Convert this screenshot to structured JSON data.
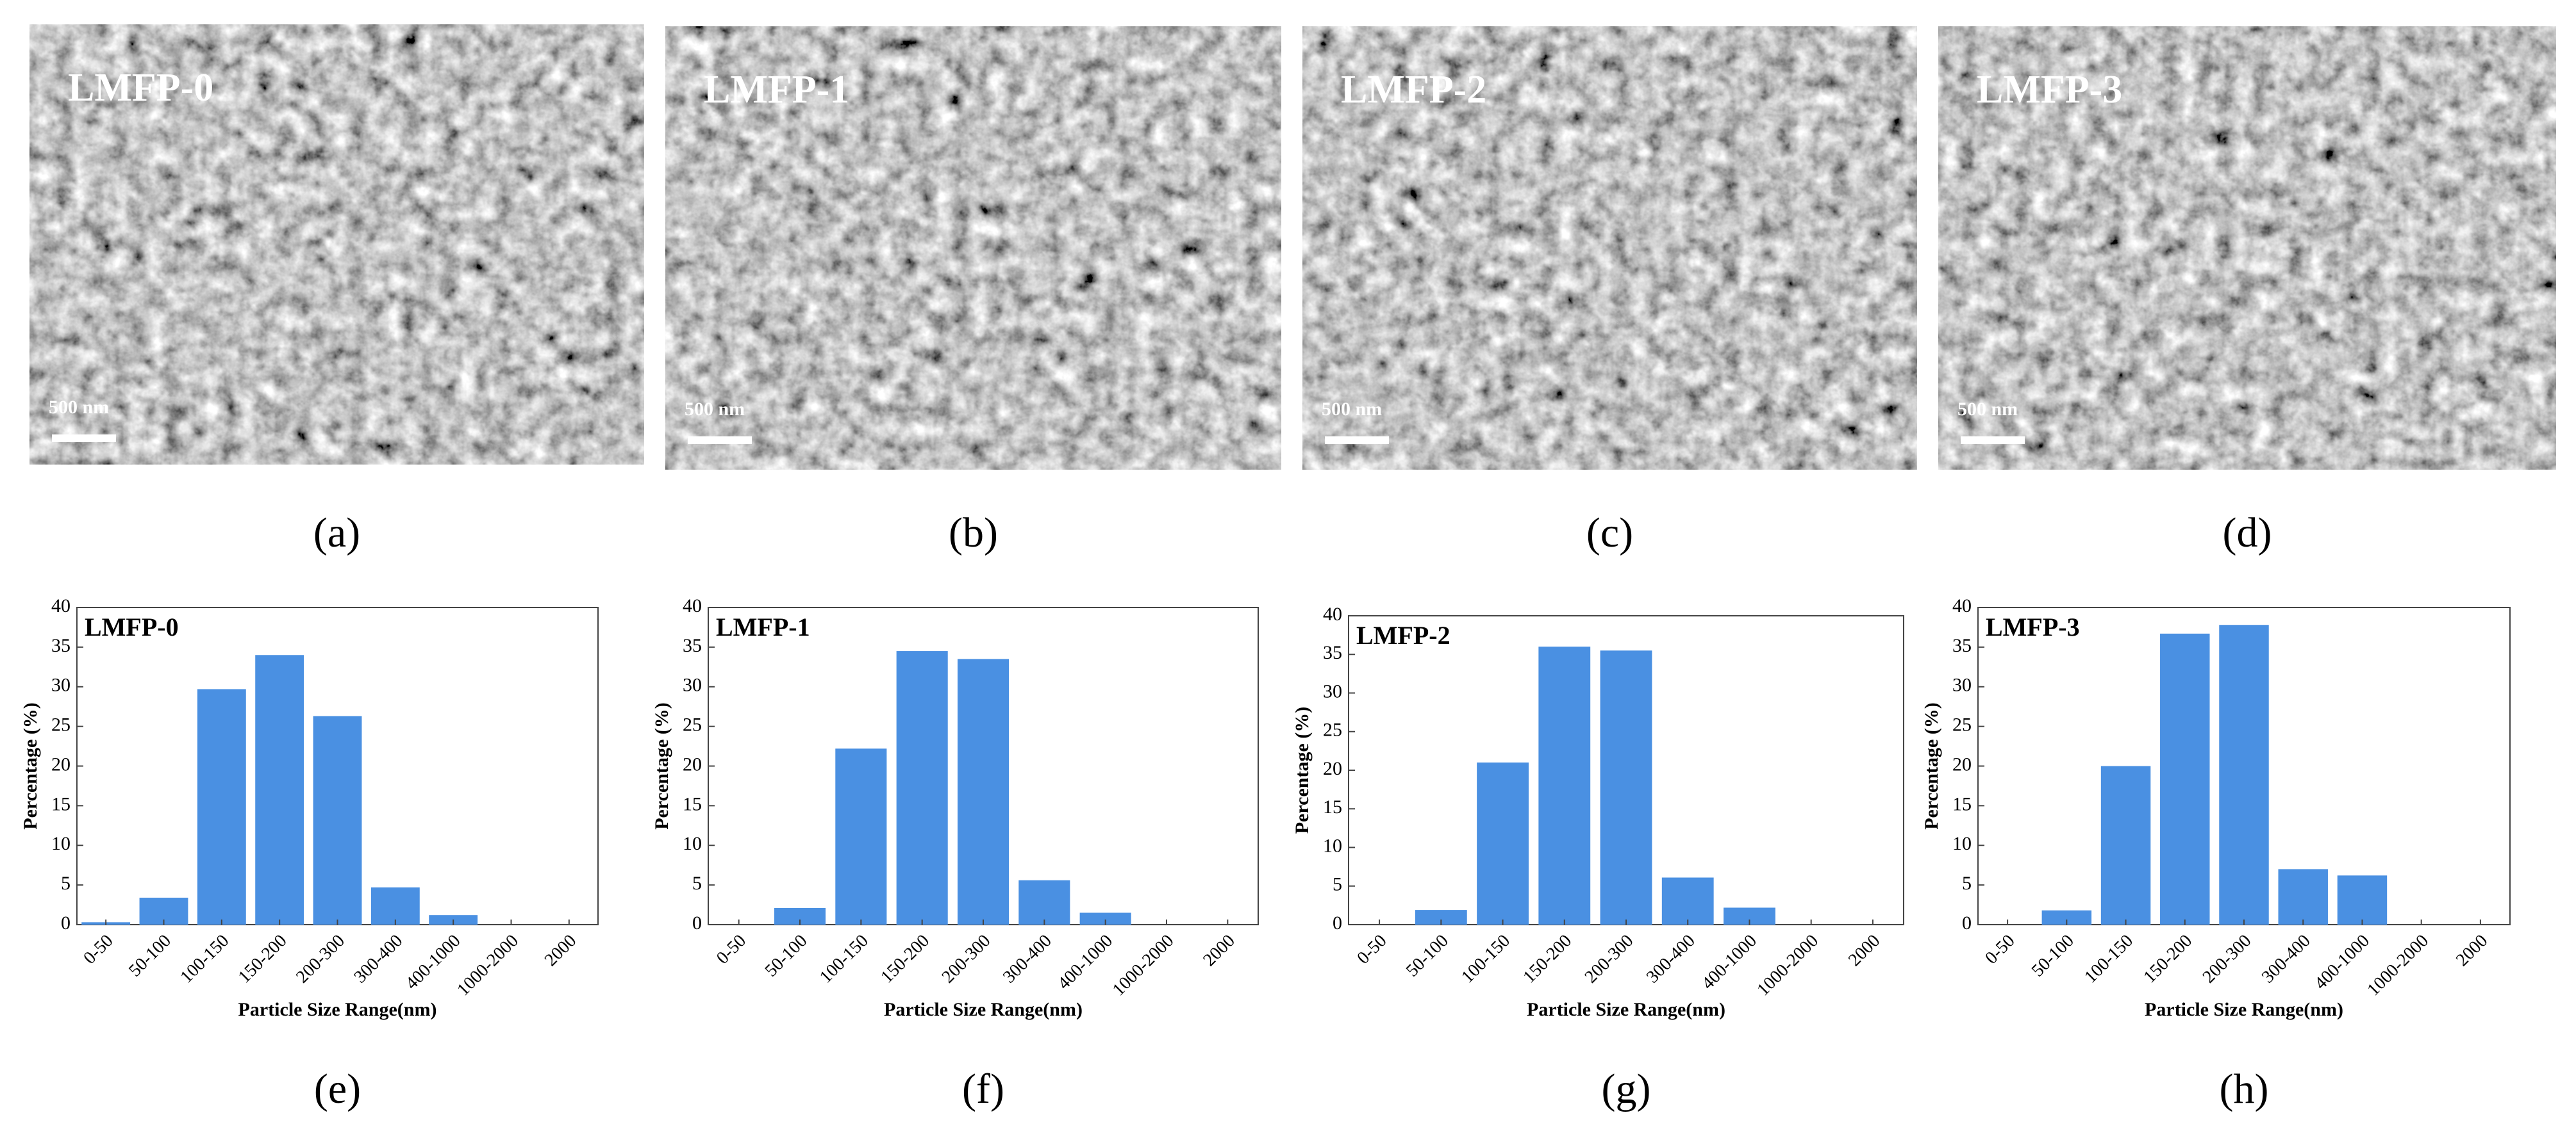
{
  "images": [
    {
      "label": "LMFP-0",
      "scale_bar": "500 nm",
      "caption": "(a)"
    },
    {
      "label": "LMFP-1",
      "scale_bar": "500 nm",
      "caption": "(b)"
    },
    {
      "label": "LMFP-2",
      "scale_bar": "500 nm",
      "caption": "(c)"
    },
    {
      "label": "LMFP-3",
      "scale_bar": "500 nm",
      "caption": "(d)"
    }
  ],
  "chart_data": [
    {
      "type": "bar",
      "annotation": "LMFP-0",
      "caption": "(e)",
      "x_label": "Particle Size Range(nm)",
      "y_label": "Percentage (%)",
      "color": "#4a90e2",
      "categories": [
        "0-50",
        "50-100",
        "100-150",
        "150-200",
        "200-300",
        "300-400",
        "400-1000",
        "1000-2000",
        "2000"
      ],
      "values": [
        0.3,
        3.4,
        29.7,
        34,
        26.3,
        4.7,
        1.2,
        0,
        0
      ],
      "ylim": [
        0,
        40
      ],
      "yticks": [
        0,
        5,
        10,
        15,
        20,
        25,
        30,
        35,
        40
      ]
    },
    {
      "type": "bar",
      "annotation": "LMFP-1",
      "caption": "(f)",
      "x_label": "Particle Size Range(nm)",
      "y_label": "Percentage (%)",
      "color": "#4a90e2",
      "categories": [
        "0-50",
        "50-100",
        "100-150",
        "150-200",
        "200-300",
        "300-400",
        "400-1000",
        "1000-2000",
        "2000"
      ],
      "values": [
        0,
        2.1,
        22.2,
        34.5,
        33.5,
        5.6,
        1.5,
        0,
        0
      ],
      "ylim": [
        0,
        40
      ],
      "yticks": [
        0,
        5,
        10,
        15,
        20,
        25,
        30,
        35,
        40
      ]
    },
    {
      "type": "bar",
      "annotation": "LMFP-2",
      "caption": "(g)",
      "x_label": "Particle Size Range(nm)",
      "y_label": "Percentage (%)",
      "color": "#4a90e2",
      "categories": [
        "0-50",
        "50-100",
        "100-150",
        "150-200",
        "200-300",
        "300-400",
        "400-1000",
        "1000-2000",
        "2000"
      ],
      "values": [
        0,
        1.9,
        21,
        36,
        35.5,
        6.1,
        2.2,
        0,
        0
      ],
      "ylim": [
        0,
        40
      ],
      "yticks": [
        0,
        5,
        10,
        15,
        20,
        25,
        30,
        35,
        40
      ]
    },
    {
      "type": "bar",
      "annotation": "LMFP-3",
      "caption": "(h)",
      "x_label": "Particle Size Range(nm)",
      "y_label": "Percentage (%)",
      "color": "#4a90e2",
      "categories": [
        "0-50",
        "50-100",
        "100-150",
        "150-200",
        "200-300",
        "300-400",
        "400-1000",
        "1000-2000",
        "2000"
      ],
      "values": [
        0,
        1.8,
        20,
        36.7,
        37.8,
        7,
        6.2,
        0,
        0
      ],
      "ylim": [
        0,
        40
      ],
      "yticks": [
        0,
        5,
        10,
        15,
        20,
        25,
        30,
        35,
        40
      ]
    }
  ]
}
